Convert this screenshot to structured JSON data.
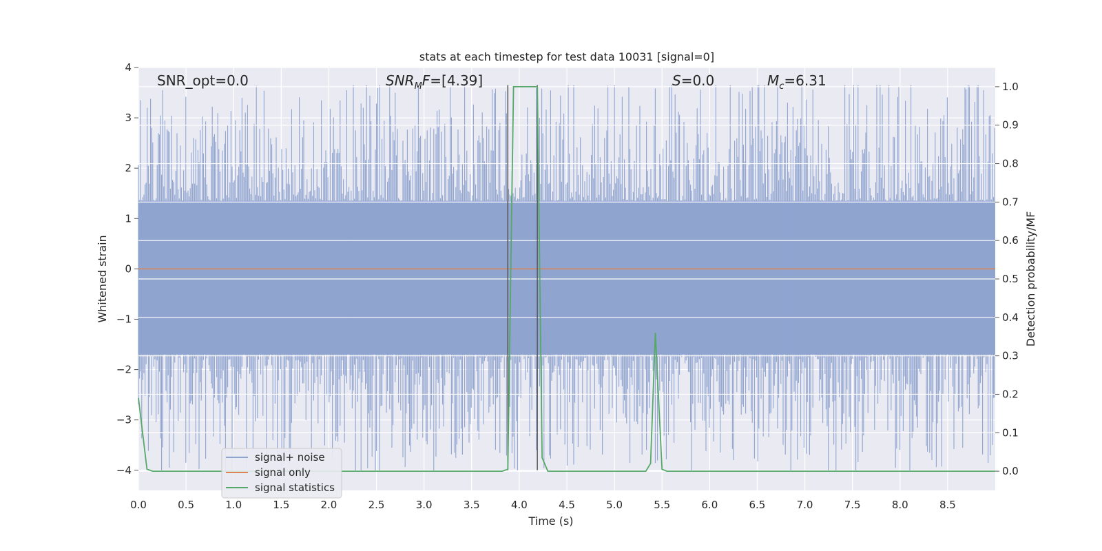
{
  "chart_data": {
    "type": "line",
    "title": "stats at each timestep for test data 10031 [signal=0]",
    "xlabel": "Time (s)",
    "ylabel": "Whitened strain",
    "y2label": "Detection probability/MF",
    "xlim": [
      0.0,
      9.0
    ],
    "ylim": [
      -4.4,
      4.0
    ],
    "y2lim": [
      -0.05,
      1.05
    ],
    "x_ticks": [
      "0.0",
      "0.5",
      "1.0",
      "1.5",
      "2.0",
      "2.5",
      "3.0",
      "3.5",
      "4.0",
      "4.5",
      "5.0",
      "5.5",
      "6.0",
      "6.5",
      "7.0",
      "7.5",
      "8.0",
      "8.5"
    ],
    "y_ticks": [
      "4",
      "3",
      "2",
      "1",
      "0",
      "−1",
      "−2",
      "−3",
      "−4"
    ],
    "y2_ticks": [
      "1.0",
      "0.9",
      "0.8",
      "0.7",
      "0.6",
      "0.5",
      "0.4",
      "0.3",
      "0.2",
      "0.1",
      "0.0"
    ],
    "grid": true,
    "legend_position": "lower-left",
    "colors": {
      "noise": "#8fa4cf",
      "signal": "#dd8452",
      "stats": "#55a868",
      "marker": "#555555",
      "background": "#eaeaf2"
    },
    "annotations": [
      {
        "text": "SNR_opt=0.0",
        "x": 0.2
      },
      {
        "text": "SNR_MF=[4.39]",
        "x": 2.6
      },
      {
        "text": "S=0.0",
        "x": 5.6
      },
      {
        "text": "M_c=6.31",
        "x": 6.6
      }
    ],
    "vertical_markers": [
      {
        "x": 3.88,
        "y_range": [
          -4.0,
          3.65
        ]
      },
      {
        "x": 4.19,
        "y_range": [
          -4.0,
          3.65
        ]
      }
    ],
    "series": [
      {
        "name": "signal+ noise",
        "kind": "noise",
        "x_range": [
          0.0,
          9.0
        ],
        "band_low": -1.7,
        "band_high": 1.35,
        "max": 3.65,
        "min": -4.0
      },
      {
        "name": "signal only",
        "kind": "flat",
        "x": [
          0.0,
          9.0
        ],
        "y": [
          0.0,
          0.0
        ]
      },
      {
        "name": "signal statistics",
        "kind": "line",
        "axis": "y2",
        "x": [
          0.0,
          0.09,
          0.15,
          3.82,
          3.88,
          3.94,
          4.19,
          4.24,
          4.3,
          5.33,
          5.38,
          5.43,
          5.5,
          5.55,
          9.0
        ],
        "y": [
          0.19,
          0.005,
          0.0,
          0.0,
          0.005,
          1.0,
          1.0,
          0.035,
          0.0,
          0.0,
          0.02,
          0.36,
          0.005,
          0.0,
          0.0
        ]
      }
    ]
  }
}
